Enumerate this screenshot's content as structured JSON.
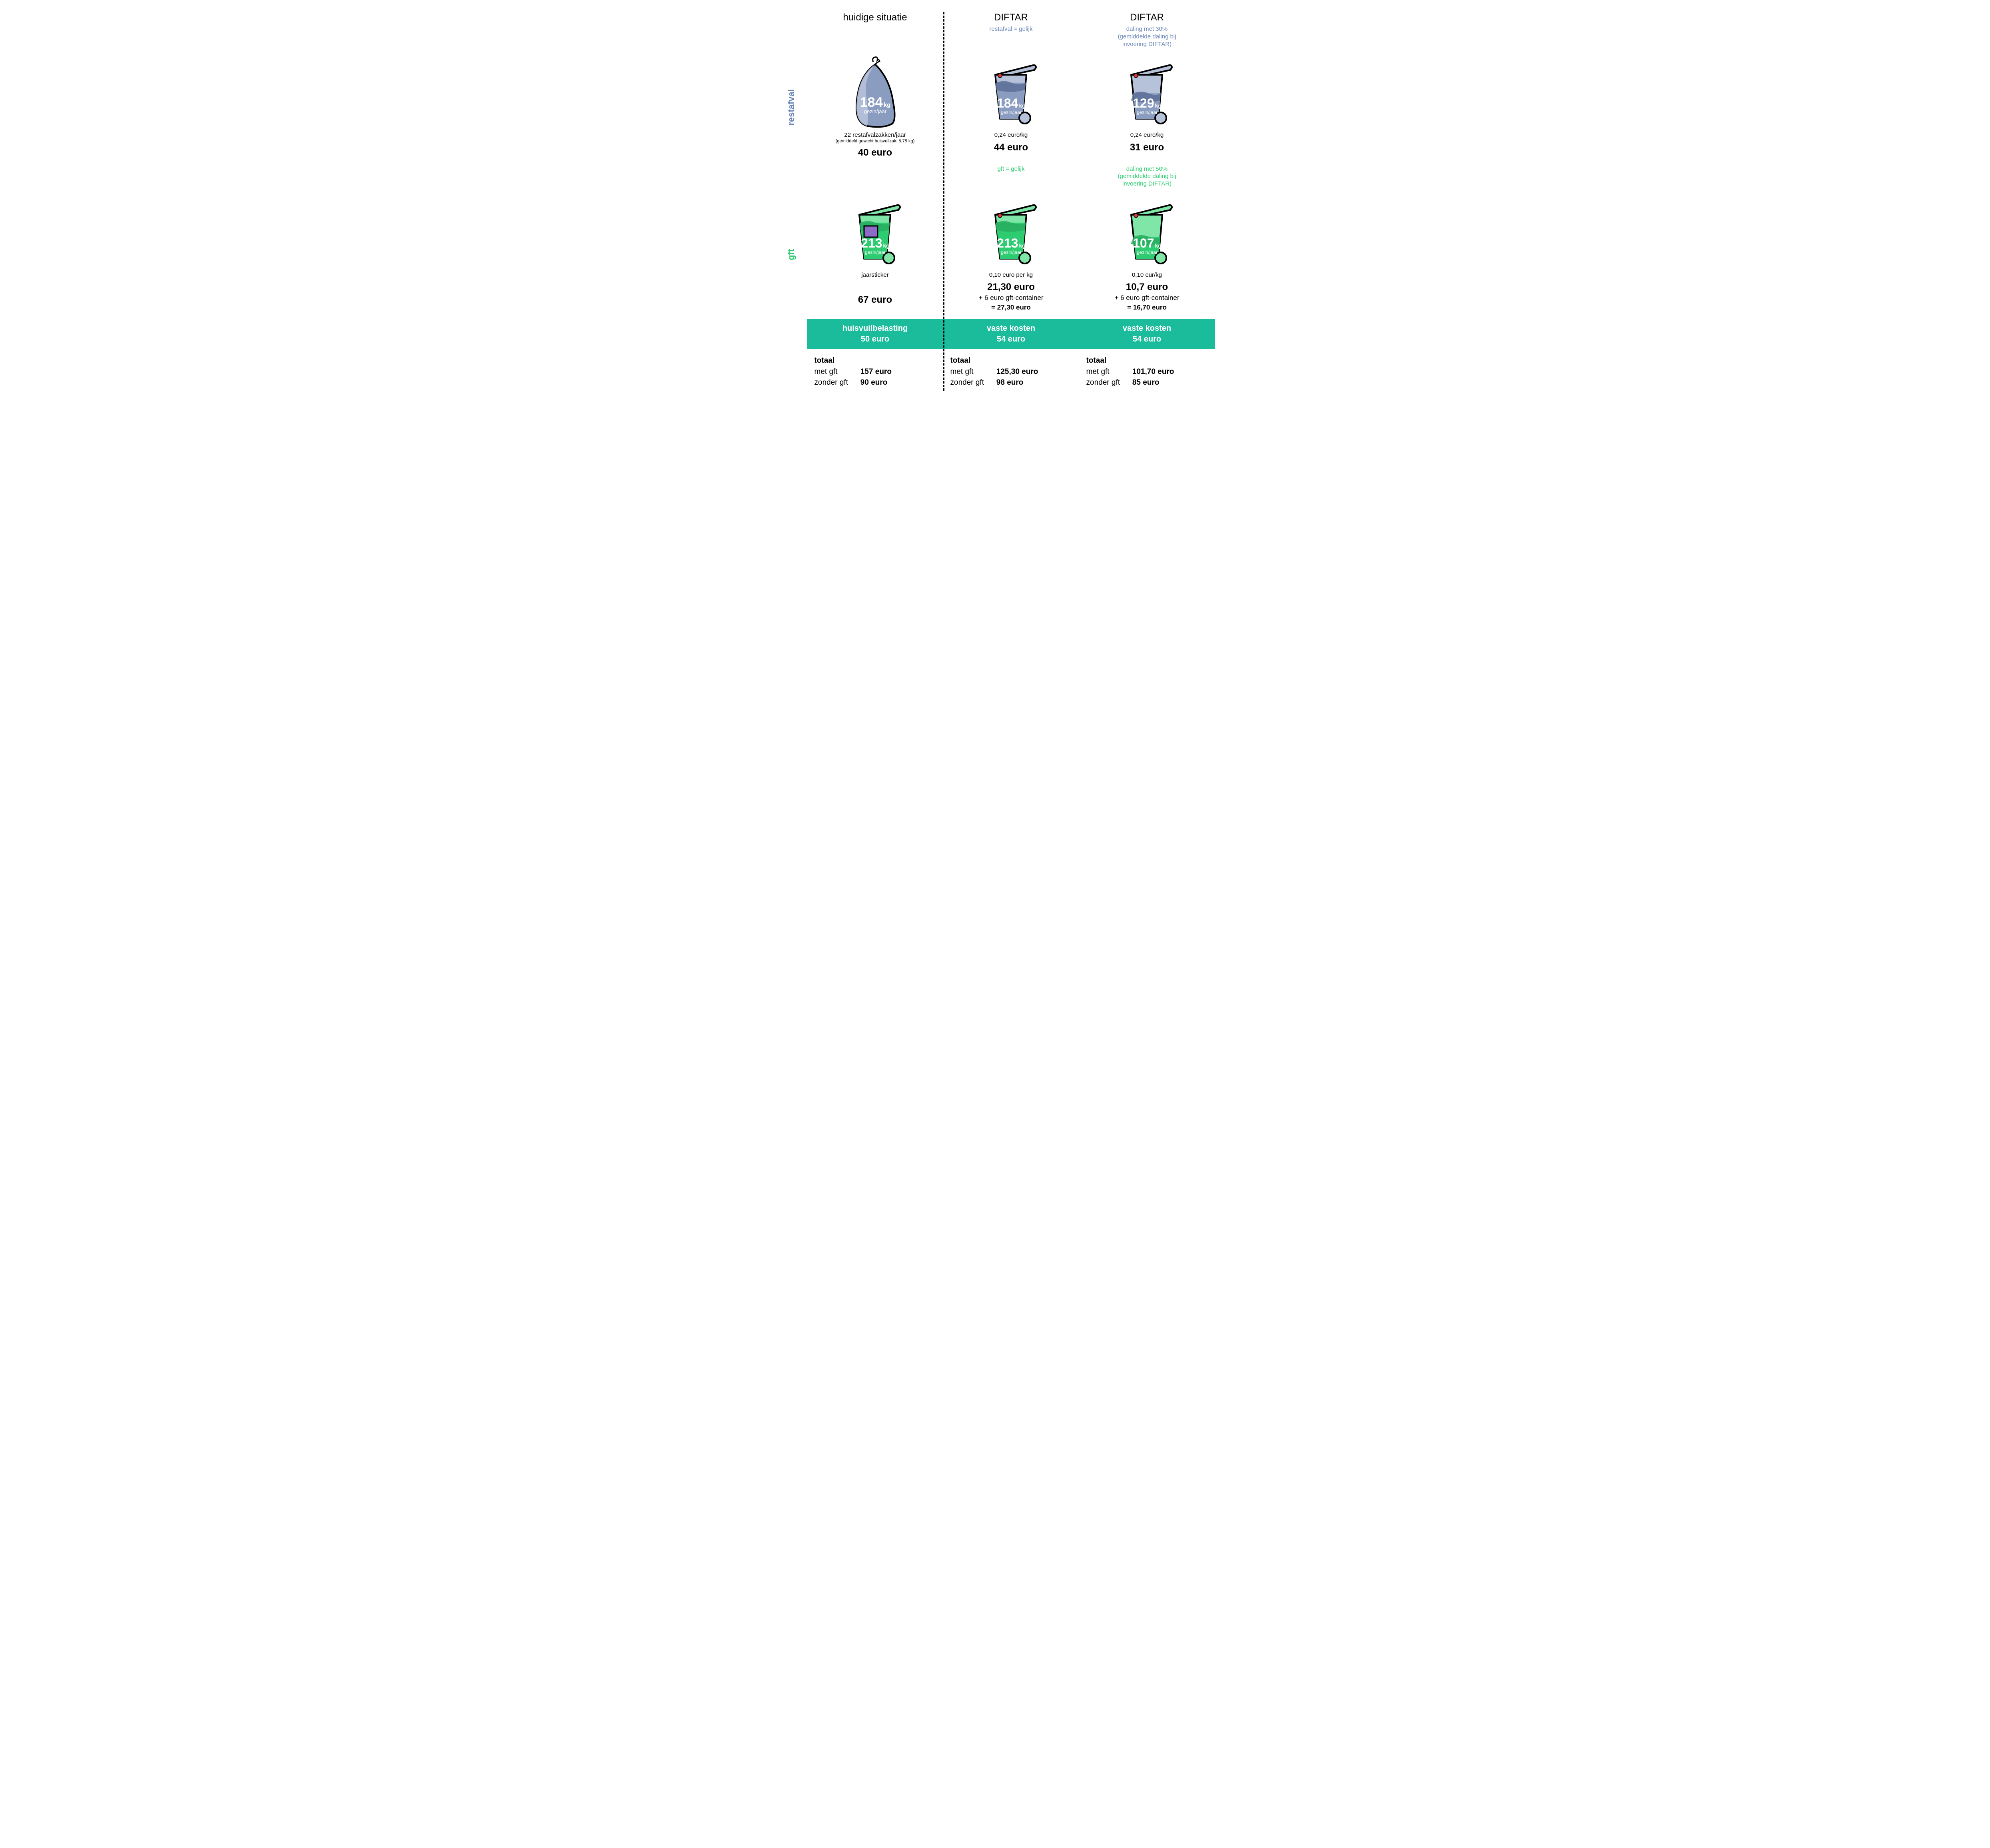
{
  "colors": {
    "restafval": "#8a9cc0",
    "restafval_dark": "#5c6f96",
    "restafval_light": "#b6c2da",
    "gft": "#2ecc71",
    "gft_dark": "#27ae60",
    "gft_light": "#7fe6a8",
    "teal": "#1abc9c",
    "red": "#e53935",
    "purple": "#8e6bc8",
    "text": "#000000",
    "white": "#ffffff"
  },
  "headers": {
    "col1": "huidige situatie",
    "col2": "DIFTAR",
    "col3": "DIFTAR"
  },
  "subheaders": {
    "col1_top": "",
    "col2_top": "restafval = gelijk",
    "col3_top": "daling met 30%\n(gemiddelde daling bij\ninvoering DIFTAR)",
    "col1_mid": "",
    "col2_mid": "gft = gelijk",
    "col3_mid": "daling met 50%\n(gemiddelde daling bij\ninvoering DIFTAR)"
  },
  "row_labels": {
    "restafval": "restafval",
    "gft": "gft"
  },
  "restafval": {
    "col1": {
      "kg": "184",
      "kg_unit": "kg",
      "kg_sub": "gezin/jaar",
      "caption1": "22 restafvalzakken/jaar",
      "caption2": "(gemiddeld gewicht huisvuilzak: 8,75 kg)",
      "price": "40 euro"
    },
    "col2": {
      "kg": "184",
      "kg_unit": "kg",
      "kg_sub": "gezin/jaar",
      "fill_ratio": 0.82,
      "caption1": "0,24 euro/kg",
      "price": "44 euro"
    },
    "col3": {
      "kg": "129",
      "kg_unit": "kg",
      "kg_sub": "gezin/jaar",
      "fill_ratio": 0.58,
      "caption1": "0,24 euro/kg",
      "price": "31 euro"
    }
  },
  "gft": {
    "col1": {
      "kg": "213",
      "kg_unit": "kg",
      "kg_sub": "gezin/jaar",
      "caption1": "jaarsticker",
      "price": "67 euro"
    },
    "col2": {
      "kg": "213",
      "kg_unit": "kg",
      "kg_sub": "gezin/jaar",
      "fill_ratio": 0.82,
      "caption1": "0,10 euro per kg",
      "price": "21,30 euro",
      "price_sub1": "+ 6 euro gft-container",
      "price_sub2": "= 27,30 euro"
    },
    "col3": {
      "kg": "107",
      "kg_unit": "kg",
      "kg_sub": "gezin/jaar",
      "fill_ratio": 0.5,
      "caption1": "0,10 eur/kg",
      "price": "10,7 euro",
      "price_sub1": "+ 6 euro gft-container",
      "price_sub2": "= 16,70 euro"
    }
  },
  "teal": {
    "col1_label": "huisvuilbelasting",
    "col1_value": "50 euro",
    "col2_label": "vaste kosten",
    "col2_value": "54 euro",
    "col3_label": "vaste kosten",
    "col3_value": "54 euro"
  },
  "totals": {
    "title": "totaal",
    "met_label": "met gft",
    "zonder_label": "zonder gft",
    "col1_met": "157 euro",
    "col1_zonder": "90 euro",
    "col2_met": "125,30 euro",
    "col2_zonder": "98 euro",
    "col3_met": "101,70 euro",
    "col3_zonder": "85 euro"
  }
}
